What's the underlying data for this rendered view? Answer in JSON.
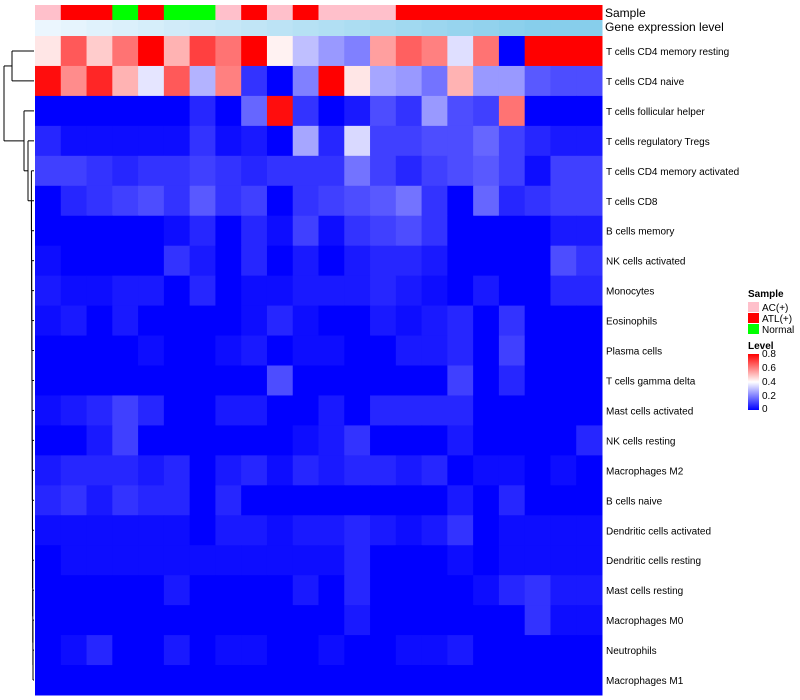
{
  "chart_data": {
    "type": "heatmap",
    "title": "",
    "annotation_labels": [
      "Sample",
      "Gene expression level"
    ],
    "sample_groups": [
      "AC(+)",
      "ATL(+)",
      "ATL(+)",
      "Normal",
      "ATL(+)",
      "Normal",
      "Normal",
      "AC(+)",
      "ATL(+)",
      "AC(+)",
      "ATL(+)",
      "AC(+)",
      "AC(+)",
      "AC(+)",
      "ATL(+)",
      "ATL(+)",
      "ATL(+)",
      "ATL(+)",
      "ATL(+)",
      "ATL(+)",
      "ATL(+)",
      "ATL(+)"
    ],
    "gene_expression_level": [
      0.05,
      0.1,
      0.15,
      0.2,
      0.25,
      0.3,
      0.35,
      0.4,
      0.45,
      0.5,
      0.55,
      0.6,
      0.65,
      0.7,
      0.75,
      0.8,
      0.85,
      0.9,
      0.95,
      1.0,
      1.0,
      1.0
    ],
    "rows": [
      "T cells CD4 memory resting",
      "T cells CD4 naive",
      "T cells follicular helper",
      "T cells regulatory  Tregs",
      "T cells CD4 memory activated",
      "T cells CD8",
      "B cells memory",
      "NK cells activated",
      "Monocytes",
      "Eosinophils",
      "Plasma cells",
      "T cells gamma delta",
      "Mast cells activated",
      "NK cells resting",
      "Macrophages M2",
      "B cells naive",
      "Dendritic cells activated",
      "Dendritic cells resting",
      "Mast cells resting",
      "Macrophages M0",
      "Neutrophils",
      "Macrophages M1"
    ],
    "values": [
      [
        0.44,
        0.66,
        0.48,
        0.62,
        0.8,
        0.52,
        0.7,
        0.62,
        0.8,
        0.42,
        0.3,
        0.24,
        0.2,
        0.55,
        0.65,
        0.6,
        0.35,
        0.62,
        0.0,
        0.8,
        0.8,
        0.8
      ],
      [
        0.78,
        0.58,
        0.74,
        0.52,
        0.36,
        0.66,
        0.28,
        0.6,
        0.08,
        0.0,
        0.2,
        0.8,
        0.44,
        0.26,
        0.24,
        0.18,
        0.52,
        0.24,
        0.24,
        0.14,
        0.12,
        0.12
      ],
      [
        0.0,
        0.0,
        0.0,
        0.0,
        0.0,
        0.0,
        0.06,
        0.0,
        0.16,
        0.78,
        0.08,
        0.0,
        0.04,
        0.12,
        0.08,
        0.24,
        0.12,
        0.1,
        0.62,
        0.0,
        0.0,
        0.0
      ],
      [
        0.06,
        0.02,
        0.02,
        0.02,
        0.02,
        0.02,
        0.08,
        0.02,
        0.04,
        0.0,
        0.26,
        0.06,
        0.34,
        0.1,
        0.1,
        0.12,
        0.12,
        0.16,
        0.1,
        0.06,
        0.04,
        0.04
      ],
      [
        0.1,
        0.1,
        0.08,
        0.06,
        0.08,
        0.08,
        0.1,
        0.08,
        0.06,
        0.08,
        0.08,
        0.08,
        0.18,
        0.1,
        0.06,
        0.1,
        0.12,
        0.14,
        0.1,
        0.02,
        0.1,
        0.1
      ],
      [
        0.0,
        0.06,
        0.08,
        0.1,
        0.12,
        0.08,
        0.14,
        0.08,
        0.1,
        0.0,
        0.08,
        0.1,
        0.12,
        0.14,
        0.18,
        0.08,
        0.0,
        0.16,
        0.06,
        0.08,
        0.1,
        0.1
      ],
      [
        0.0,
        0.0,
        0.0,
        0.0,
        0.0,
        0.02,
        0.06,
        0.0,
        0.06,
        0.02,
        0.1,
        0.02,
        0.08,
        0.1,
        0.12,
        0.08,
        0.0,
        0.0,
        0.0,
        0.0,
        0.04,
        0.04
      ],
      [
        0.02,
        0.0,
        0.0,
        0.0,
        0.0,
        0.08,
        0.04,
        0.0,
        0.06,
        0.0,
        0.04,
        0.0,
        0.04,
        0.06,
        0.06,
        0.04,
        0.0,
        0.0,
        0.0,
        0.0,
        0.12,
        0.08
      ],
      [
        0.04,
        0.02,
        0.02,
        0.04,
        0.04,
        0.0,
        0.06,
        0.0,
        0.02,
        0.02,
        0.04,
        0.04,
        0.04,
        0.06,
        0.04,
        0.02,
        0.0,
        0.04,
        0.0,
        0.0,
        0.06,
        0.06
      ],
      [
        0.02,
        0.04,
        0.0,
        0.04,
        0.0,
        0.0,
        0.0,
        0.0,
        0.02,
        0.06,
        0.02,
        0.0,
        0.0,
        0.04,
        0.02,
        0.04,
        0.06,
        0.0,
        0.08,
        0.0,
        0.0,
        0.0
      ],
      [
        0.0,
        0.0,
        0.0,
        0.0,
        0.02,
        0.0,
        0.0,
        0.02,
        0.04,
        0.0,
        0.02,
        0.02,
        0.0,
        0.0,
        0.04,
        0.04,
        0.06,
        0.0,
        0.1,
        0.0,
        0.0,
        0.0
      ],
      [
        0.0,
        0.0,
        0.0,
        0.0,
        0.0,
        0.0,
        0.0,
        0.0,
        0.0,
        0.12,
        0.0,
        0.0,
        0.0,
        0.0,
        0.0,
        0.0,
        0.1,
        0.0,
        0.06,
        0.0,
        0.0,
        0.0
      ],
      [
        0.02,
        0.04,
        0.06,
        0.1,
        0.06,
        0.0,
        0.0,
        0.04,
        0.04,
        0.0,
        0.0,
        0.04,
        0.0,
        0.06,
        0.06,
        0.06,
        0.06,
        0.0,
        0.0,
        0.0,
        0.0,
        0.0
      ],
      [
        0.0,
        0.0,
        0.04,
        0.1,
        0.0,
        0.0,
        0.0,
        0.0,
        0.0,
        0.0,
        0.02,
        0.04,
        0.08,
        0.0,
        0.0,
        0.0,
        0.04,
        0.0,
        0.0,
        0.0,
        0.0,
        0.06
      ],
      [
        0.04,
        0.06,
        0.06,
        0.06,
        0.04,
        0.06,
        0.0,
        0.04,
        0.06,
        0.02,
        0.06,
        0.04,
        0.06,
        0.06,
        0.04,
        0.06,
        0.0,
        0.02,
        0.02,
        0.0,
        0.02,
        0.0
      ],
      [
        0.06,
        0.08,
        0.04,
        0.08,
        0.06,
        0.06,
        0.0,
        0.06,
        0.0,
        0.0,
        0.0,
        0.0,
        0.0,
        0.0,
        0.0,
        0.0,
        0.04,
        0.0,
        0.06,
        0.0,
        0.0,
        0.0
      ],
      [
        0.02,
        0.02,
        0.02,
        0.02,
        0.02,
        0.02,
        0.0,
        0.04,
        0.04,
        0.02,
        0.04,
        0.04,
        0.06,
        0.04,
        0.02,
        0.04,
        0.08,
        0.0,
        0.02,
        0.02,
        0.02,
        0.02
      ],
      [
        0.0,
        0.02,
        0.02,
        0.02,
        0.02,
        0.02,
        0.02,
        0.02,
        0.02,
        0.02,
        0.02,
        0.02,
        0.06,
        0.0,
        0.0,
        0.0,
        0.02,
        0.0,
        0.02,
        0.02,
        0.02,
        0.02
      ],
      [
        0.0,
        0.0,
        0.0,
        0.0,
        0.0,
        0.04,
        0.0,
        0.0,
        0.0,
        0.0,
        0.04,
        0.0,
        0.06,
        0.0,
        0.0,
        0.0,
        0.0,
        0.02,
        0.06,
        0.08,
        0.04,
        0.04
      ],
      [
        0.0,
        0.0,
        0.0,
        0.0,
        0.0,
        0.0,
        0.0,
        0.0,
        0.0,
        0.0,
        0.0,
        0.0,
        0.04,
        0.0,
        0.0,
        0.0,
        0.0,
        0.0,
        0.0,
        0.08,
        0.02,
        0.02
      ],
      [
        0.0,
        0.02,
        0.06,
        0.0,
        0.0,
        0.04,
        0.0,
        0.02,
        0.02,
        0.0,
        0.0,
        0.02,
        0.0,
        0.0,
        0.02,
        0.02,
        0.04,
        0.0,
        0.0,
        0.0,
        0.0,
        0.0
      ],
      [
        0.0,
        0.0,
        0.0,
        0.0,
        0.0,
        0.0,
        0.0,
        0.0,
        0.0,
        0.0,
        0.0,
        0.0,
        0.0,
        0.0,
        0.0,
        0.0,
        0.0,
        0.0,
        0.0,
        0.0,
        0.0,
        0.0
      ]
    ],
    "legend_sample": {
      "title": "Sample",
      "entries": [
        {
          "label": "AC(+)",
          "color": "#ffc0cb"
        },
        {
          "label": "ATL(+)",
          "color": "#ff0000"
        },
        {
          "label": "Normal",
          "color": "#00ff00"
        }
      ]
    },
    "legend_level": {
      "title": "Level",
      "ticks": [
        "0.8",
        "0.6",
        "0.4",
        "0.2",
        "0"
      ],
      "range": [
        0,
        0.8
      ]
    },
    "color_scale": {
      "low": "#0000ff",
      "mid": "#ffffff",
      "high": "#ff0000",
      "min": 0,
      "mid_value": 0.4,
      "max": 0.8
    },
    "gene_expression_colors": {
      "low": "#f0f8ff",
      "high": "#87ceeb"
    },
    "dendrogram": "rows clustered"
  }
}
